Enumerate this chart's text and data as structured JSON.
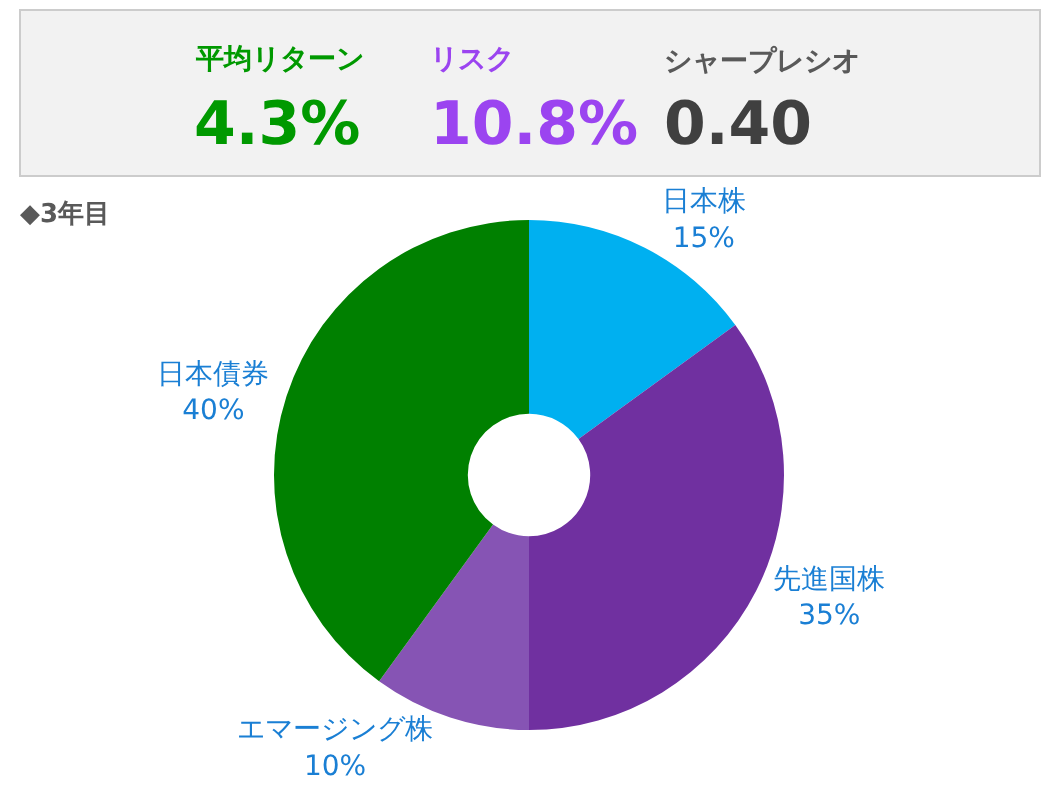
{
  "chart_data": [
    {
      "type": "other",
      "annotations": [
        "平均リターン",
        "4.3%",
        "リスク",
        "10.8%",
        "シャープレシオ",
        "0.40"
      ],
      "colors": [
        "#009900",
        "#9b44f0",
        "#404040"
      ]
    },
    {
      "type": "donut",
      "title": "◆3年目",
      "categories": [
        "日本株",
        "先進国株",
        "エマージング株",
        "日本債券"
      ],
      "values": [
        15,
        35,
        10,
        40
      ],
      "value_labels": [
        "15%",
        "35%",
        "10%",
        "40%"
      ],
      "colors": [
        "#00b0f0",
        "#7030a0",
        "#8654b4",
        "#008000"
      ],
      "legend": false
    }
  ]
}
